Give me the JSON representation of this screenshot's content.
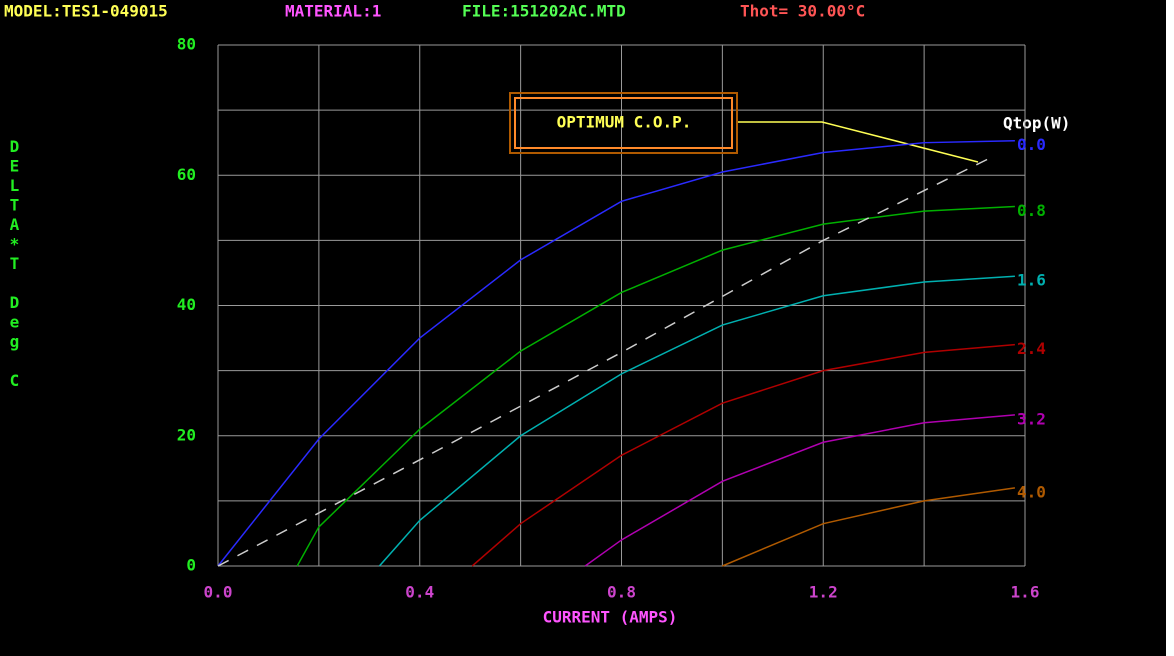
{
  "header": [
    "MODEL:TES1-049015",
    "MATERIAL:1",
    "FILE:151202AC.MTD",
    "Thot= 30.00°C"
  ],
  "chart_data": {
    "type": "line",
    "y_label": "DELTA*T Deg C",
    "x_label": "CURRENT (AMPS)",
    "legend_title": "Qtop(W)",
    "annotation": "OPTIMUM C.O.P.",
    "xlim": [
      0,
      1.6
    ],
    "ylim": [
      0,
      80
    ],
    "xticks": [
      {
        "value": 0,
        "label": "0.0"
      },
      0.4,
      0.8,
      1.2,
      1.6
    ],
    "yticks": [
      0,
      20,
      40,
      60,
      80
    ],
    "minor_xticks": [
      0.2,
      0.6,
      1.0,
      1.4
    ],
    "minor_yticks": [
      10,
      30,
      50,
      70
    ],
    "grid": true,
    "series": [
      {
        "name": "0.0",
        "color": "#2a2aff",
        "x": [
          0,
          0.2,
          0.4,
          0.6,
          0.8,
          1.0,
          1.2,
          1.4,
          1.58
        ],
        "values": [
          0,
          19.5,
          35,
          47,
          56,
          60.5,
          63.5,
          65,
          65.3
        ]
      },
      {
        "name": "0.8",
        "color": "#00b000",
        "x": [
          0.157,
          0.2,
          0.4,
          0.6,
          0.8,
          1.0,
          1.2,
          1.4,
          1.58
        ],
        "values": [
          0,
          6,
          21,
          33,
          42,
          48.5,
          52.5,
          54.5,
          55.2
        ]
      },
      {
        "name": "1.6",
        "color": "#00b0b0",
        "x": [
          0.32,
          0.4,
          0.6,
          0.8,
          1.0,
          1.2,
          1.4,
          1.58
        ],
        "values": [
          0,
          7,
          20,
          29.5,
          37,
          41.5,
          43.6,
          44.5
        ]
      },
      {
        "name": "2.4",
        "color": "#b00000",
        "x": [
          0.504,
          0.6,
          0.8,
          1.0,
          1.2,
          1.4,
          1.58
        ],
        "values": [
          0,
          6.5,
          17,
          25,
          30,
          32.8,
          34
        ]
      },
      {
        "name": "3.2",
        "color": "#b000b0",
        "x": [
          0.728,
          0.8,
          1.0,
          1.2,
          1.4,
          1.58
        ],
        "values": [
          0,
          4,
          13,
          19,
          22,
          23.2
        ]
      },
      {
        "name": "4.0",
        "color": "#b05a00",
        "x": [
          1.0,
          1.2,
          1.4,
          1.58
        ],
        "values": [
          0,
          6.5,
          10,
          12
        ]
      }
    ],
    "optimum": {
      "color": "#cccccc",
      "style": "dashed",
      "x": [
        0,
        0.4,
        0.8,
        1.2,
        1.54
      ],
      "values": [
        0,
        16.3,
        32.8,
        50,
        63
      ]
    }
  }
}
